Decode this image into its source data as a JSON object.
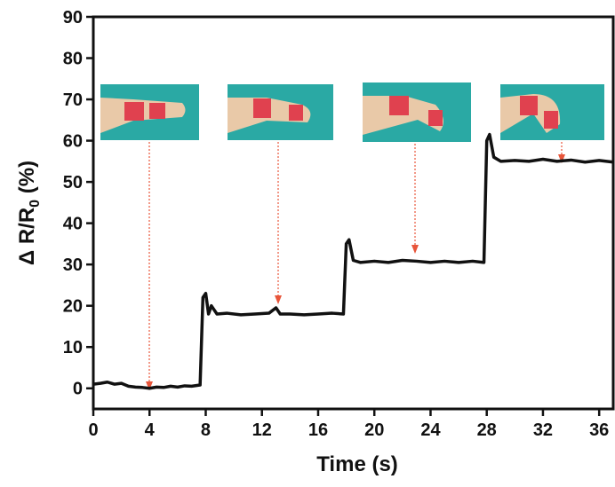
{
  "chart_data": {
    "type": "line",
    "xlabel": "Time (s)",
    "ylabel": {
      "main": "Δ R/R",
      "sub": "0",
      "unit": "(%)"
    },
    "x": [
      0,
      0.5,
      1,
      1.5,
      2,
      2.5,
      3,
      3.5,
      4,
      4.5,
      5,
      5.5,
      6,
      6.5,
      7,
      7.6,
      7.8,
      8,
      8.2,
      8.4,
      8.8,
      9.5,
      10.5,
      11.5,
      12.5,
      13,
      13.3,
      14,
      15,
      16,
      17,
      17.8,
      18,
      18.2,
      18.5,
      19,
      20,
      21,
      22,
      23,
      24,
      25,
      26,
      27,
      27.8,
      28,
      28.2,
      28.5,
      29,
      30,
      31,
      32,
      33,
      34,
      35,
      36,
      37
    ],
    "series": [
      {
        "color": "#111111",
        "values": [
          1,
          1.2,
          1.5,
          1.0,
          1.2,
          0.5,
          0.3,
          0.2,
          0,
          0.3,
          0.2,
          0.5,
          0.3,
          0.6,
          0.5,
          0.8,
          22,
          23,
          18,
          20,
          18,
          18.2,
          17.8,
          18,
          18.2,
          19.5,
          18,
          18,
          17.8,
          18,
          18.2,
          18,
          35,
          36,
          31,
          30.5,
          30.8,
          30.5,
          31,
          30.8,
          30.5,
          30.8,
          30.5,
          30.8,
          30.5,
          60,
          61.5,
          56,
          55,
          55.2,
          55,
          55.5,
          55,
          55.3,
          54.8,
          55.2,
          54.8
        ]
      }
    ],
    "xlim": [
      0,
      37
    ],
    "ylim": [
      -5,
      90
    ],
    "xticks": [
      0,
      4,
      8,
      12,
      16,
      20,
      24,
      28,
      32,
      36
    ],
    "yticks": [
      0,
      10,
      20,
      30,
      40,
      50,
      60,
      70,
      80,
      90
    ]
  }
}
